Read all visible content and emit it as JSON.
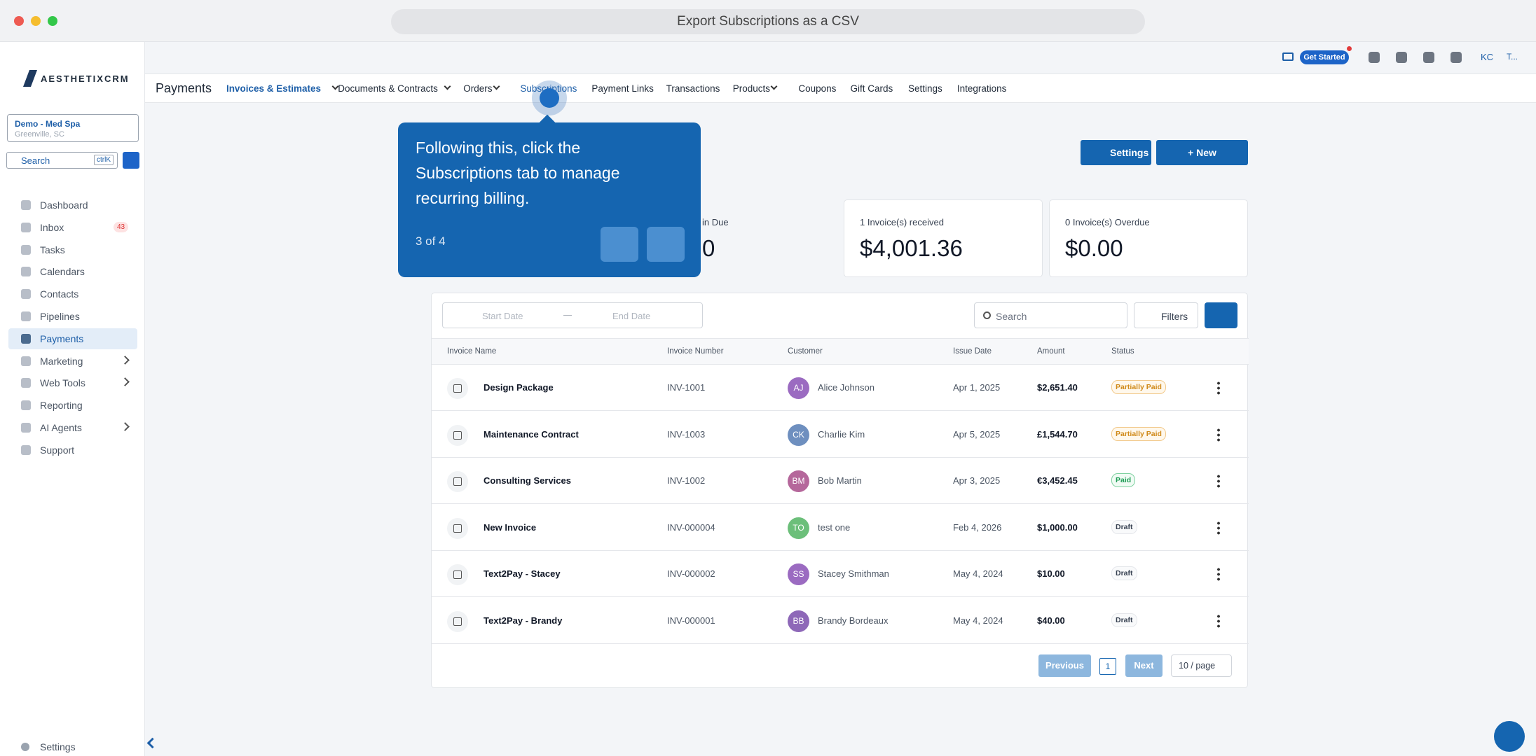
{
  "browser": {
    "address": "Export Subscriptions as a CSV"
  },
  "topbar": {
    "get_started": "Get Started",
    "initials": "KC",
    "more": "T..."
  },
  "sidebar": {
    "logo": "AESTHETIXCRM",
    "location_name": "Demo - Med Spa",
    "location_city": "Greenville, SC",
    "search": "Search",
    "search_shortcut": "ctrlK",
    "items": [
      {
        "label": "Dashboard"
      },
      {
        "label": "Inbox",
        "badge": "43"
      },
      {
        "label": "Tasks"
      },
      {
        "label": "Calendars"
      },
      {
        "label": "Contacts"
      },
      {
        "label": "Pipelines"
      },
      {
        "label": "Payments"
      },
      {
        "label": "Marketing"
      },
      {
        "label": "Web Tools"
      },
      {
        "label": "Reporting"
      },
      {
        "label": "AI Agents"
      },
      {
        "label": "Support"
      }
    ],
    "settings": "Settings"
  },
  "nav": {
    "title": "Payments",
    "tabs": [
      "Invoices & Estimates",
      "Documents & Contracts",
      "Orders",
      "Subscriptions",
      "Payment Links",
      "Transactions",
      "Products",
      "Coupons",
      "Gift Cards",
      "Settings",
      "Integrations"
    ]
  },
  "actions": {
    "settings": "Settings",
    "new": "+ New"
  },
  "cards": [
    {
      "label": "in Due",
      "value": "0"
    },
    {
      "label": "1 Invoice(s) received",
      "value": "$4,001.36"
    },
    {
      "label": "0 Invoice(s) Overdue",
      "value": "$0.00"
    }
  ],
  "tooltip": {
    "text": "Following this, click the Subscriptions tab to manage recurring billing.",
    "step": "3 of 4"
  },
  "table": {
    "start_date": "Start Date",
    "end_date": "End Date",
    "search": "Search",
    "filters": "Filters",
    "columns": [
      "Invoice Name",
      "Invoice Number",
      "Customer",
      "Issue Date",
      "Amount",
      "Status"
    ],
    "rows": [
      [
        "Design Package",
        "INV-1001",
        "AJ",
        "Alice Johnson",
        "Apr 1, 2025",
        "$2,651.40",
        "Partially Paid"
      ],
      [
        "Maintenance Contract",
        "INV-1003",
        "CK",
        "Charlie Kim",
        "Apr 5, 2025",
        "£1,544.70",
        "Partially Paid"
      ],
      [
        "Consulting Services",
        "INV-1002",
        "BM",
        "Bob Martin",
        "Apr 3, 2025",
        "€3,452.45",
        "Paid"
      ],
      [
        "New Invoice",
        "INV-000004",
        "TO",
        "test one",
        "Feb 4, 2026",
        "$1,000.00",
        "Draft"
      ],
      [
        "Text2Pay - Stacey",
        "INV-000002",
        "SS",
        "Stacey Smithman",
        "May 4, 2024",
        "$10.00",
        "Draft"
      ],
      [
        "Text2Pay - Brandy",
        "INV-000001",
        "BB",
        "Brandy Bordeaux",
        "May 4, 2024",
        "$40.00",
        "Draft"
      ]
    ]
  },
  "pagination": {
    "previous": "Previous",
    "page": "1",
    "next": "Next",
    "per_page": "10 / page"
  }
}
